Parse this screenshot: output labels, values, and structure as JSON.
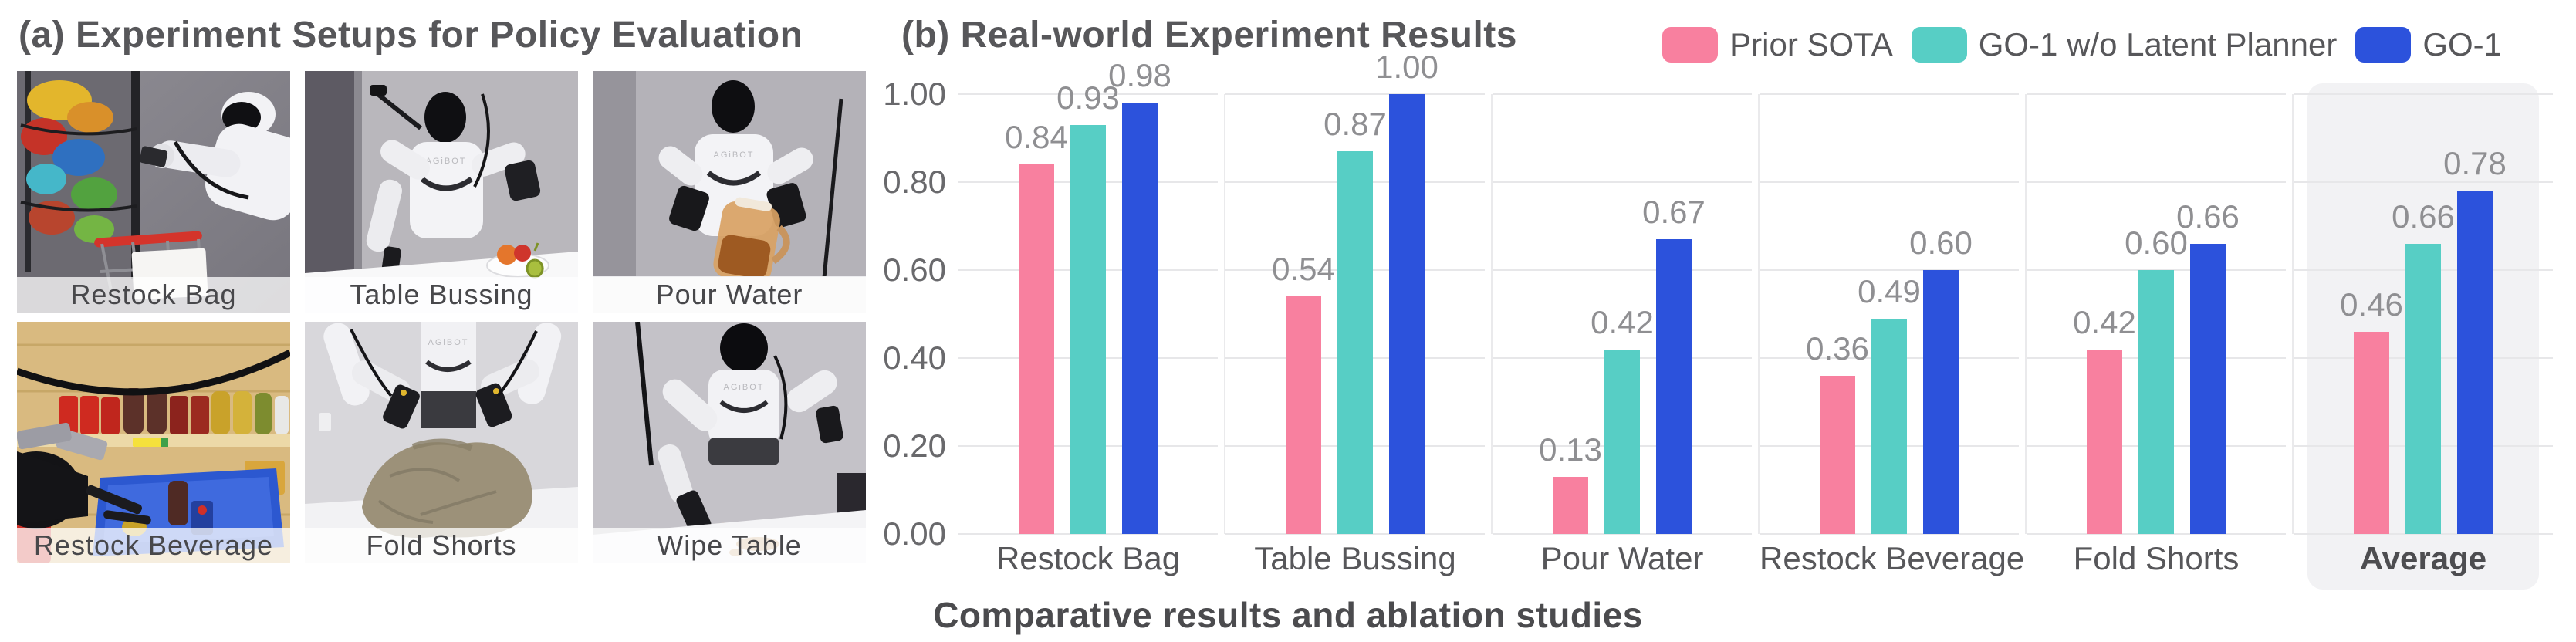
{
  "panel_a": {
    "title": "(a) Experiment Setups for Policy Evaluation",
    "robot_brand": "AGiBOT",
    "setups": [
      "Restock Bag",
      "Table Bussing",
      "Pour Water",
      "Restock Beverage",
      "Fold Shorts",
      "Wipe Table"
    ]
  },
  "panel_b": {
    "title": "(b) Real-world Experiment Results",
    "caption": "Comparative results and ablation studies"
  },
  "chart_data": {
    "type": "bar",
    "title": "(b) Real-world Experiment Results",
    "categories": [
      "Restock Bag",
      "Table Bussing",
      "Pour Water",
      "Restock Beverage",
      "Fold Shorts",
      "Average"
    ],
    "series": [
      {
        "name": "Prior SOTA",
        "color": "#F8809F",
        "values": [
          0.84,
          0.54,
          0.13,
          0.36,
          0.42,
          0.46
        ]
      },
      {
        "name": "GO-1 w/o Latent Planner",
        "color": "#57CEC5",
        "values": [
          0.93,
          0.87,
          0.42,
          0.49,
          0.6,
          0.66
        ]
      },
      {
        "name": "GO-1",
        "color": "#2C52DC",
        "values": [
          0.98,
          1.0,
          0.67,
          0.6,
          0.66,
          0.78
        ]
      }
    ],
    "ylim": [
      0,
      1
    ],
    "yticks": [
      "0.00",
      "0.20",
      "0.40",
      "0.60",
      "0.80",
      "1.00"
    ],
    "value_label_decimals": 2,
    "grid": "horizontal",
    "legend_position": "top-right",
    "highlighted_category": "Average",
    "colors": {
      "highlight_bg": "#F2F2F4",
      "gridline": "#E7E7E9",
      "separator": "#EAEAEC",
      "value_label": "#8F8F92",
      "tick_label": "#69696C",
      "category_label": "#57575A",
      "title": "#57575A",
      "caption": "#4B4B4E"
    }
  }
}
